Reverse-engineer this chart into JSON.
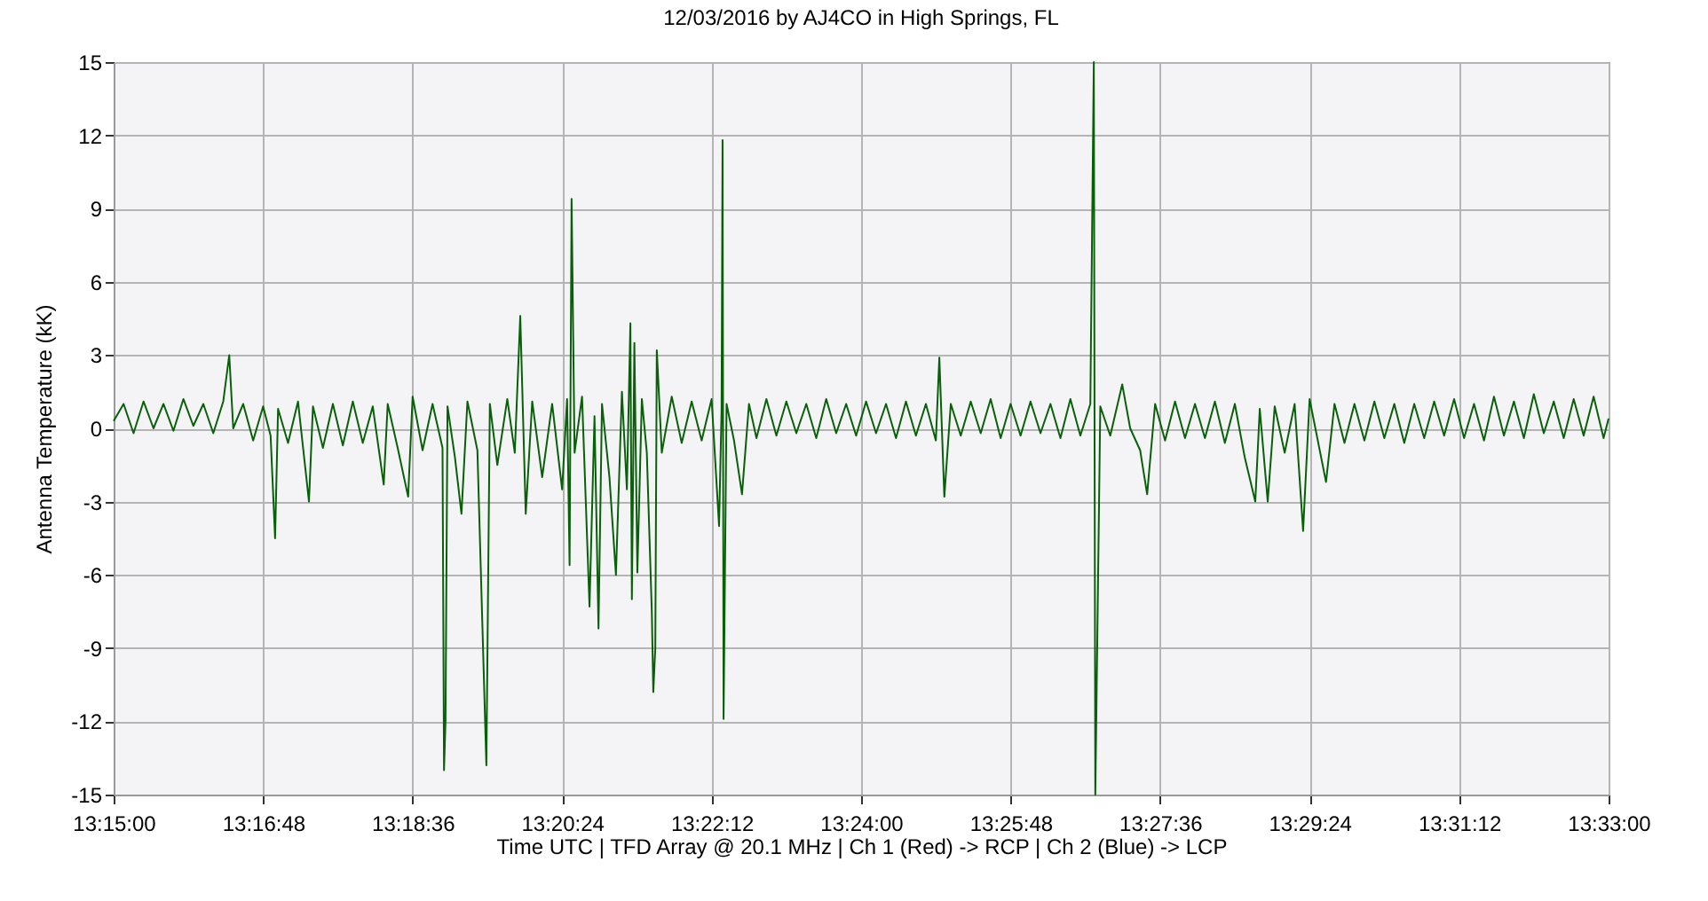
{
  "chart_data": {
    "type": "line",
    "title": "12/03/2016  by  AJ4CO  in  High Springs, FL",
    "xlabel": "Time UTC    |    TFD Array @ 20.1 MHz    |    Ch 1 (Red) -> RCP    |    Ch 2 (Blue)  -> LCP",
    "ylabel": "Antenna Temperature (kK)",
    "xlim": [
      13.25,
      13.55
    ],
    "xticks": [
      {
        "value": 13.25,
        "label": "13:15:00"
      },
      {
        "value": 13.28,
        "label": "13:16:48"
      },
      {
        "value": 13.31,
        "label": "13:18:36"
      },
      {
        "value": 13.34,
        "label": "13:20:24"
      },
      {
        "value": 13.37,
        "label": "13:22:12"
      },
      {
        "value": 13.4,
        "label": "13:24:00"
      },
      {
        "value": 13.43,
        "label": "13:25:48"
      },
      {
        "value": 13.46,
        "label": "13:27:36"
      },
      {
        "value": 13.49,
        "label": "13:29:24"
      },
      {
        "value": 13.52,
        "label": "13:31:12"
      },
      {
        "value": 13.55,
        "label": "13:33:00"
      }
    ],
    "ylim": [
      -15,
      15
    ],
    "yticks": [
      -15,
      -12,
      -9,
      -6,
      -3,
      0,
      3,
      6,
      9,
      12,
      15
    ],
    "grid": true,
    "series": [
      {
        "color": "#0a5f0a",
        "x": [
          13.25,
          13.252,
          13.254,
          13.256,
          13.258,
          13.26,
          13.262,
          13.264,
          13.266,
          13.268,
          13.27,
          13.272,
          13.2732,
          13.274,
          13.276,
          13.278,
          13.28,
          13.2815,
          13.2824,
          13.283,
          13.285,
          13.287,
          13.2892,
          13.29,
          13.292,
          13.294,
          13.296,
          13.298,
          13.3,
          13.302,
          13.3042,
          13.305,
          13.307,
          13.3091,
          13.31,
          13.312,
          13.314,
          13.316,
          13.3163,
          13.3166,
          13.317,
          13.3185,
          13.3198,
          13.321,
          13.323,
          13.3248,
          13.3255,
          13.327,
          13.329,
          13.3305,
          13.3316,
          13.3327,
          13.334,
          13.336,
          13.338,
          13.34,
          13.341,
          13.3415,
          13.3419,
          13.3425,
          13.344,
          13.3455,
          13.3465,
          13.3473,
          13.348,
          13.3495,
          13.3508,
          13.352,
          13.353,
          13.3537,
          13.354,
          13.3545,
          13.3551,
          13.356,
          13.357,
          13.358,
          13.3583,
          13.3587,
          13.359,
          13.36,
          13.362,
          13.364,
          13.366,
          13.368,
          13.37,
          13.3715,
          13.372,
          13.3722,
          13.3724,
          13.373,
          13.3745,
          13.3761,
          13.3775,
          13.379,
          13.381,
          13.383,
          13.385,
          13.387,
          13.389,
          13.391,
          13.393,
          13.395,
          13.397,
          13.399,
          13.401,
          13.403,
          13.405,
          13.407,
          13.409,
          13.411,
          13.413,
          13.415,
          13.4157,
          13.4167,
          13.418,
          13.42,
          13.422,
          13.424,
          13.426,
          13.428,
          13.43,
          13.432,
          13.434,
          13.436,
          13.438,
          13.44,
          13.442,
          13.444,
          13.446,
          13.4467,
          13.447,
          13.448,
          13.45,
          13.4524,
          13.454,
          13.456,
          13.4574,
          13.459,
          13.461,
          13.463,
          13.465,
          13.467,
          13.469,
          13.471,
          13.473,
          13.475,
          13.477,
          13.4791,
          13.48,
          13.4816,
          13.483,
          13.485,
          13.487,
          13.4887,
          13.49,
          13.4933,
          13.495,
          13.497,
          13.499,
          13.501,
          13.503,
          13.505,
          13.507,
          13.509,
          13.511,
          13.513,
          13.515,
          13.517,
          13.519,
          13.521,
          13.523,
          13.525,
          13.527,
          13.529,
          13.531,
          13.533,
          13.535,
          13.537,
          13.539,
          13.541,
          13.543,
          13.545,
          13.547,
          13.549,
          13.55
        ],
        "values": [
          0.3,
          1.0,
          -0.2,
          1.1,
          0.0,
          1.0,
          -0.1,
          1.2,
          0.1,
          1.0,
          -0.2,
          1.1,
          3.0,
          0.0,
          1.0,
          -0.5,
          0.9,
          -0.3,
          -4.5,
          0.8,
          -0.6,
          1.1,
          -3.0,
          0.9,
          -0.8,
          1.0,
          -0.7,
          1.1,
          -0.6,
          0.9,
          -2.3,
          1.0,
          -0.8,
          -2.8,
          1.3,
          -0.9,
          1.0,
          -0.8,
          -14.0,
          -12.0,
          0.9,
          -1.2,
          -3.5,
          1.1,
          -0.9,
          -13.8,
          1.0,
          -1.5,
          1.2,
          -1.0,
          4.6,
          -3.5,
          1.1,
          -2.0,
          1.0,
          -2.5,
          1.2,
          -5.6,
          9.4,
          -1.0,
          1.3,
          -7.3,
          0.5,
          -8.2,
          1.0,
          -2.0,
          -6.0,
          1.5,
          -2.5,
          4.3,
          -7.0,
          3.5,
          -5.9,
          1.2,
          -1.0,
          -7.5,
          -10.8,
          -9.0,
          3.2,
          -1.0,
          1.3,
          -0.6,
          1.1,
          -0.5,
          1.2,
          -4.0,
          0.8,
          11.8,
          -11.9,
          1.0,
          -0.5,
          -2.7,
          1.0,
          -0.4,
          1.2,
          -0.3,
          1.1,
          -0.2,
          1.0,
          -0.4,
          1.2,
          -0.2,
          1.0,
          -0.3,
          1.1,
          -0.2,
          1.0,
          -0.4,
          1.1,
          -0.3,
          1.0,
          -0.5,
          2.9,
          -2.8,
          1.0,
          -0.3,
          1.1,
          -0.2,
          1.2,
          -0.4,
          1.0,
          -0.3,
          1.1,
          -0.2,
          1.0,
          -0.4,
          1.2,
          -0.3,
          1.0,
          15.0,
          -15.0,
          0.9,
          -0.3,
          1.8,
          0.0,
          -0.9,
          -2.7,
          1.0,
          -0.5,
          1.1,
          -0.4,
          1.0,
          -0.4,
          1.1,
          -0.6,
          1.0,
          -1.2,
          -3.0,
          0.8,
          -3.0,
          0.9,
          -1.0,
          1.0,
          -4.2,
          1.2,
          -2.2,
          1.0,
          -0.6,
          1.0,
          -0.5,
          1.1,
          -0.4,
          1.0,
          -0.6,
          1.0,
          -0.4,
          1.1,
          -0.3,
          1.2,
          -0.4,
          1.0,
          -0.5,
          1.3,
          -0.3,
          1.1,
          -0.4,
          1.4,
          -0.2,
          1.1,
          -0.4,
          1.2,
          -0.3,
          1.3,
          -0.4,
          0.4
        ]
      }
    ]
  }
}
